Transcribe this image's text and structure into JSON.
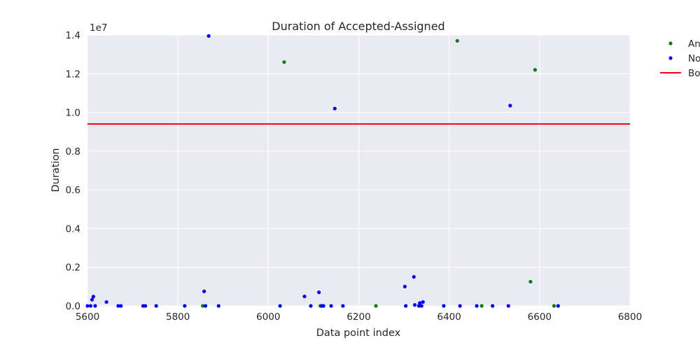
{
  "chart_data": {
    "type": "scatter",
    "title": "Duration of Accepted-Assigned",
    "xlabel": "Data point index",
    "ylabel": "Duration",
    "y_exponent_label": "1e7",
    "xlim": [
      5600,
      6800
    ],
    "ylim": [
      0,
      14000000
    ],
    "x_ticks": [
      "5600",
      "5800",
      "6000",
      "6200",
      "6400",
      "6600",
      "6800"
    ],
    "y_ticks": [
      "0.0",
      "0.2",
      "0.4",
      "0.6",
      "0.8",
      "1.0",
      "1.2",
      "1.4"
    ],
    "grid": true,
    "legend_position": "outside-top-right",
    "colors": {
      "background": "#EAEAF2",
      "grid": "#FFFFFF",
      "series_green": "#008000",
      "series_blue": "#0000FF",
      "boundary": "#FF0000"
    },
    "series": [
      {
        "name": "An",
        "color": "#008000",
        "x": [
          5855,
          6035,
          6115,
          6238,
          6418,
          6472,
          6580,
          6590,
          6632
        ],
        "y": [
          0,
          12600000,
          0,
          0,
          13700000,
          0,
          1250000,
          12200000,
          0
        ]
      },
      {
        "name": "No",
        "color": "#0000FF",
        "x": [
          5600,
          5607,
          5610,
          5613,
          5617,
          5642,
          5668,
          5674,
          5723,
          5728,
          5752,
          5815,
          5858,
          5861,
          5868,
          5890,
          6026,
          6080,
          6094,
          6112,
          6118,
          6122,
          6139,
          6147,
          6165,
          6302,
          6304,
          6322,
          6324,
          6333,
          6335,
          6339,
          6342,
          6388,
          6424,
          6461,
          6496,
          6531,
          6535,
          6641
        ],
        "y": [
          0,
          0,
          320000,
          480000,
          0,
          200000,
          0,
          0,
          0,
          0,
          0,
          0,
          750000,
          0,
          13950000,
          0,
          0,
          490000,
          0,
          700000,
          0,
          0,
          0,
          10200000,
          0,
          1000000,
          0,
          1500000,
          50000,
          0,
          150000,
          0,
          200000,
          0,
          0,
          0,
          0,
          0,
          10350000,
          0
        ]
      }
    ],
    "lines": [
      {
        "name": "Bo",
        "type": "horizontal",
        "y": 9400000,
        "color": "#FF0000"
      }
    ]
  }
}
